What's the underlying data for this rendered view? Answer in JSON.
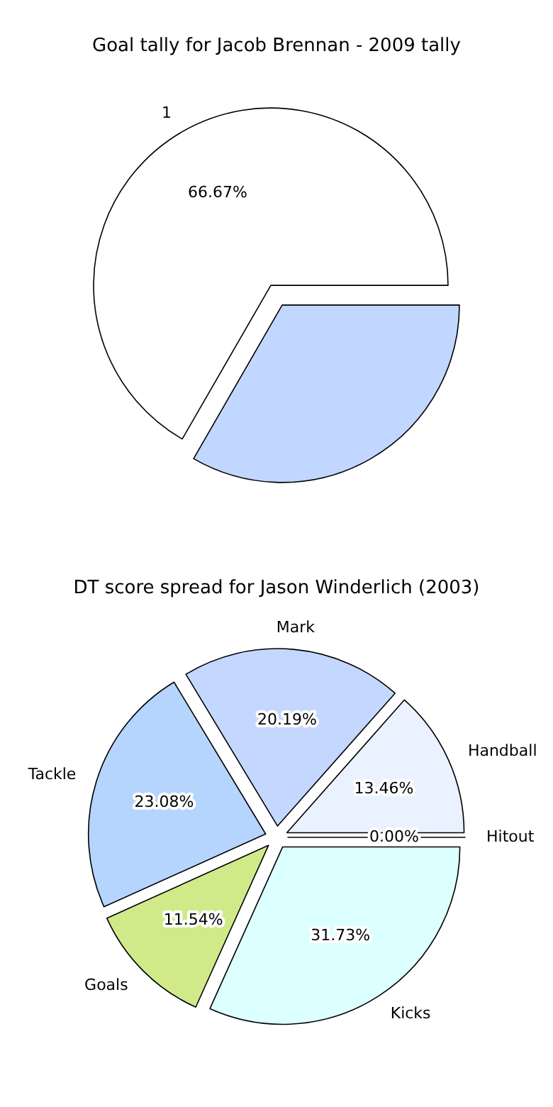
{
  "chart_data": [
    {
      "type": "pie",
      "title": "Goal tally for Jacob Brennan - 2009 tally",
      "categories": [
        "1",
        null
      ],
      "values": [
        66.67,
        33.33
      ],
      "colors": [
        "#ffffff",
        "#c2d7ff"
      ],
      "value_labels": [
        "66.67%",
        null
      ]
    },
    {
      "type": "pie",
      "title": "DT score spread for Jason Winderlich (2003)",
      "categories": [
        "Hitout",
        "Handball",
        "Mark",
        "Tackle",
        "Goals",
        "Kicks"
      ],
      "values": [
        0,
        13.46,
        20.19,
        23.08,
        11.54,
        31.73
      ],
      "colors": [
        "#a9c4f5",
        "#eaf1ff",
        "#c4d8ff",
        "#b5d5ff",
        "#d0ea8a",
        "#dcffff"
      ],
      "value_labels": [
        "0.00%",
        "13.46%",
        "20.19%",
        "23.08%",
        "11.54%",
        "31.73%"
      ]
    }
  ]
}
